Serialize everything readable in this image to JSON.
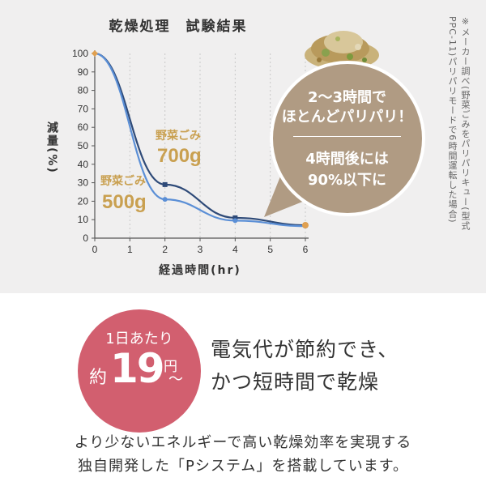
{
  "header": {
    "title": "乾燥処理　試験結果"
  },
  "note": {
    "col1": "※メーカー調べ(野菜ごみをパリパリキュー(型式",
    "col2": "PPC-11)パリパリモードで6時間運転した場合)"
  },
  "bubble": {
    "line1": "2～3時間で",
    "line2": "ほとんどパリパリ！",
    "line3": "4時間後には",
    "line4": "90%以下に"
  },
  "chart_data": {
    "type": "line",
    "xlabel": "経過時間(hr)",
    "ylabel": "減量(%)",
    "xlim": [
      0,
      6
    ],
    "ylim": [
      0,
      100
    ],
    "xticks": [
      0,
      1,
      2,
      3,
      4,
      5,
      6
    ],
    "yticks": [
      0,
      10,
      20,
      30,
      40,
      50,
      60,
      70,
      80,
      90,
      100
    ],
    "grid": "vertical dashed",
    "series": [
      {
        "name_prefix": "野菜ごみ",
        "name_value": "700g",
        "color": "#2e4a78",
        "x": [
          0,
          2,
          4,
          6
        ],
        "y": [
          100,
          29,
          11,
          7
        ]
      },
      {
        "name_prefix": "野菜ごみ",
        "name_value": "500g",
        "color": "#5b8fd6",
        "x": [
          0,
          2,
          4,
          6
        ],
        "y": [
          100,
          21,
          9.5,
          6.5
        ]
      }
    ]
  },
  "colors": {
    "bubble": "#b09b83",
    "circle": "#d25f6f",
    "series_700": "#2e4a78",
    "series_500": "#5b8fd6",
    "label_gold": "#c9a050",
    "marker_start": "#e0a050"
  },
  "promo": {
    "circle_line1": "1日あたり",
    "circle_prefix": "約",
    "circle_number": "19",
    "circle_unit": "円",
    "circle_tilde": "～",
    "right_line1": "電気代が節約でき、",
    "right_line2": "かつ短時間で乾燥"
  },
  "footer": {
    "line1": "より少ないエネルギーで高い乾燥効率を実現する",
    "line2": "独自開発した「Pシステム」を搭載しています。"
  }
}
